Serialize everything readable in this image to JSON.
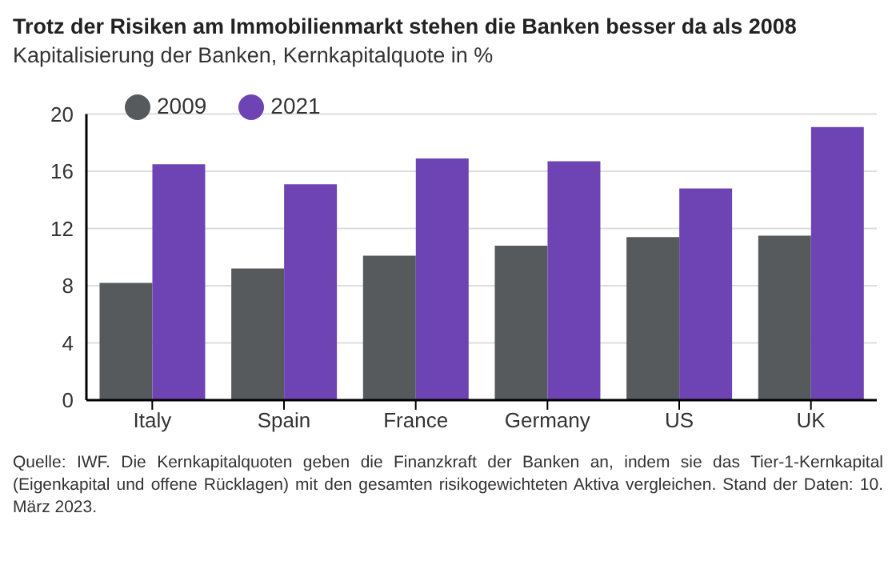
{
  "chart_data": {
    "type": "bar",
    "title": "Trotz der Risiken am Immobilienmarkt stehen die Banken besser da als 2008",
    "subtitle": "Kapitalisierung der Banken, Kernkapitalquote in %",
    "categories": [
      "Italy",
      "Spain",
      "France",
      "Germany",
      "US",
      "UK"
    ],
    "series": [
      {
        "name": "2009",
        "color": "#575a5d",
        "values": [
          8.2,
          9.2,
          10.1,
          10.8,
          11.4,
          11.5
        ]
      },
      {
        "name": "2021",
        "color": "#6e44b5",
        "values": [
          16.5,
          15.1,
          16.9,
          16.7,
          14.8,
          19.1
        ]
      }
    ],
    "ylim": [
      0,
      20
    ],
    "yticks": [
      0,
      4,
      8,
      12,
      16,
      20
    ],
    "grid": "y",
    "legend": "top left",
    "annotations": [
      "Quelle: IWF. Die Kernkapitalquoten geben die Finanzkraft der Banken an, indem sie das Tier-1-Kernkapital (Eigenkapital und offene Rücklagen) mit den gesamten risikogewichteten Aktiva vergleichen. Stand der Daten: 10. März 2023."
    ]
  }
}
